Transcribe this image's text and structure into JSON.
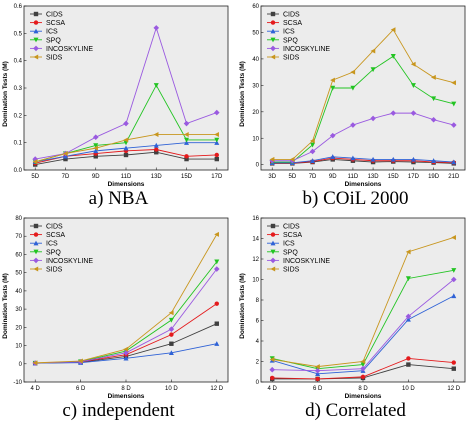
{
  "series_styles": {
    "CIDS": {
      "color": "#404040",
      "marker": "square"
    },
    "SCSA": {
      "color": "#e41a1c",
      "marker": "circle"
    },
    "ICS": {
      "color": "#2f62d6",
      "marker": "triangle"
    },
    "SPQ": {
      "color": "#22c422",
      "marker": "tridown"
    },
    "INCOSKYLINE": {
      "color": "#9a5ae0",
      "marker": "diamond"
    },
    "SIDS": {
      "color": "#c8961e",
      "marker": "triangle-left"
    }
  },
  "chart_data": [
    {
      "type": "line",
      "caption": "a) NBA",
      "xlabel": "Dimensions",
      "ylabel": "Domination Tests (M)",
      "categories": [
        "5D",
        "7D",
        "9D",
        "11D",
        "13D",
        "15D",
        "17D"
      ],
      "ylim": [
        0,
        0.6
      ],
      "yticks": [
        0.0,
        0.1,
        0.2,
        0.3,
        0.4,
        0.5,
        0.6
      ],
      "ytick_labels": [
        "0.0",
        "0.1",
        "0.2",
        "0.3",
        "0.4",
        "0.5",
        "0.6"
      ],
      "grid": false,
      "legend_position": "top-left",
      "series": [
        {
          "name": "CIDS",
          "values": [
            0.02,
            0.04,
            0.05,
            0.055,
            0.065,
            0.04,
            0.04
          ]
        },
        {
          "name": "SCSA",
          "values": [
            0.025,
            0.05,
            0.06,
            0.07,
            0.075,
            0.05,
            0.055
          ]
        },
        {
          "name": "ICS",
          "values": [
            0.03,
            0.05,
            0.07,
            0.08,
            0.09,
            0.1,
            0.1
          ]
        },
        {
          "name": "SPQ",
          "values": [
            0.03,
            0.06,
            0.09,
            0.1,
            0.31,
            0.11,
            0.11
          ]
        },
        {
          "name": "INCOSKYLINE",
          "values": [
            0.04,
            0.06,
            0.12,
            0.17,
            0.52,
            0.17,
            0.21
          ]
        },
        {
          "name": "SIDS",
          "values": [
            0.03,
            0.06,
            0.08,
            0.11,
            0.13,
            0.13,
            0.13
          ]
        }
      ]
    },
    {
      "type": "line",
      "caption": "b) COiL 2000",
      "xlabel": "Dimensions",
      "ylabel": "Domination Tests (M)",
      "categories": [
        "3D",
        "5D",
        "7D",
        "9D",
        "11D",
        "13D",
        "15D",
        "17D",
        "19D",
        "21D"
      ],
      "ylim": [
        -2,
        60
      ],
      "yticks": [
        0,
        10,
        20,
        30,
        40,
        50,
        60
      ],
      "ytick_labels": [
        "0",
        "10",
        "20",
        "30",
        "40",
        "50",
        "60"
      ],
      "grid": false,
      "legend_position": "top-left",
      "series": [
        {
          "name": "CIDS",
          "values": [
            0.5,
            0.5,
            1.0,
            2.0,
            1.5,
            1.0,
            1.2,
            1.0,
            0.8,
            0.5
          ]
        },
        {
          "name": "SCSA",
          "values": [
            0.6,
            0.6,
            1.2,
            2.5,
            2.0,
            1.5,
            1.5,
            1.5,
            1.0,
            0.8
          ]
        },
        {
          "name": "ICS",
          "values": [
            0.7,
            0.7,
            1.5,
            3.0,
            2.5,
            2.0,
            2.0,
            2.0,
            1.5,
            1.0
          ]
        },
        {
          "name": "SPQ",
          "values": [
            1.0,
            1.0,
            7.5,
            29,
            29,
            36,
            41,
            30,
            25,
            23
          ]
        },
        {
          "name": "INCOSKYLINE",
          "values": [
            1.5,
            1.5,
            5.0,
            11,
            15,
            17.5,
            19.5,
            19.5,
            17,
            15
          ]
        },
        {
          "name": "SIDS",
          "values": [
            2.0,
            2.0,
            9.0,
            32,
            35,
            43,
            51,
            38,
            33,
            31
          ]
        }
      ]
    },
    {
      "type": "line",
      "caption": "c) independent",
      "xlabel": "Dimensions",
      "ylabel": "Domination Tests (M)",
      "categories": [
        "4 D",
        "6 D",
        "8 D",
        "10 D",
        "12 D"
      ],
      "ylim": [
        -10,
        80
      ],
      "yticks": [
        -10,
        0,
        10,
        20,
        30,
        40,
        50,
        60,
        70,
        80
      ],
      "ytick_labels": [
        "-10",
        "0",
        "10",
        "20",
        "30",
        "40",
        "50",
        "60",
        "70",
        "80"
      ],
      "grid": false,
      "legend_position": "top-left",
      "series": [
        {
          "name": "CIDS",
          "values": [
            0.3,
            0.8,
            4,
            11,
            22
          ]
        },
        {
          "name": "SCSA",
          "values": [
            0.3,
            1.0,
            5,
            16,
            33
          ]
        },
        {
          "name": "ICS",
          "values": [
            0.3,
            0.6,
            3,
            6,
            11
          ]
        },
        {
          "name": "SPQ",
          "values": [
            0.4,
            1.2,
            7,
            24,
            56
          ]
        },
        {
          "name": "INCOSKYLINE",
          "values": [
            0.4,
            1.1,
            6,
            19,
            52
          ]
        },
        {
          "name": "SIDS",
          "values": [
            0.5,
            1.5,
            8,
            28,
            71
          ]
        }
      ]
    },
    {
      "type": "line",
      "caption": "d) Correlated",
      "xlabel": "Dimensions",
      "ylabel": "Domination Tests (M)",
      "categories": [
        "4 D",
        "6 D",
        "8 D",
        "10 D",
        "12 D"
      ],
      "ylim": [
        0,
        16
      ],
      "yticks": [
        0,
        2,
        4,
        6,
        8,
        10,
        12,
        14,
        16
      ],
      "ytick_labels": [
        "0",
        "2",
        "4",
        "6",
        "8",
        "10",
        "12",
        "14",
        "16"
      ],
      "grid": false,
      "legend_position": "top-left",
      "series": [
        {
          "name": "CIDS",
          "values": [
            0.3,
            0.3,
            0.4,
            1.7,
            1.3
          ]
        },
        {
          "name": "SCSA",
          "values": [
            0.4,
            0.3,
            0.5,
            2.3,
            1.9
          ]
        },
        {
          "name": "ICS",
          "values": [
            2.1,
            0.8,
            1.1,
            6.1,
            8.4
          ]
        },
        {
          "name": "SPQ",
          "values": [
            2.3,
            1.3,
            1.7,
            10.1,
            10.9
          ]
        },
        {
          "name": "INCOSKYLINE",
          "values": [
            1.2,
            1.1,
            1.3,
            6.4,
            10.0
          ]
        },
        {
          "name": "SIDS",
          "values": [
            2.2,
            1.5,
            2.0,
            12.7,
            14.1
          ]
        }
      ]
    }
  ]
}
